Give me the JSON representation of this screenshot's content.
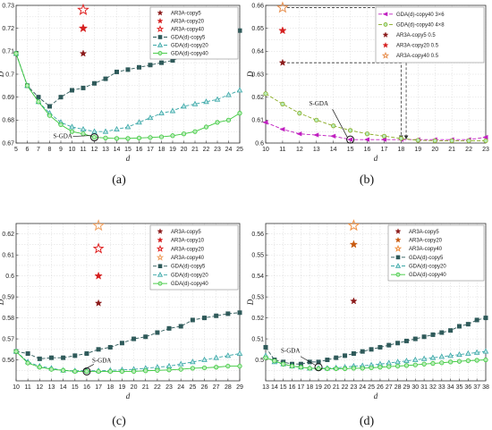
{
  "chart_data": [
    {
      "type": "line",
      "panel_label": "(a)",
      "xlabel": "d",
      "ylabel": "D",
      "xlim": [
        5,
        25
      ],
      "ylim": [
        0.67,
        0.73
      ],
      "xticks": [
        5,
        6,
        7,
        8,
        9,
        10,
        11,
        12,
        13,
        14,
        15,
        16,
        17,
        18,
        19,
        20,
        21,
        22,
        23,
        24,
        25
      ],
      "yticks": [
        0.67,
        0.68,
        0.69,
        0.7,
        0.71,
        0.72,
        0.73
      ],
      "ytick_labels": [
        "0.67",
        "0.68",
        "0.69",
        "0.7",
        "0.71",
        "0.72",
        "0.73"
      ],
      "grid": true,
      "legend_position": "top-right",
      "annotation": {
        "text": "S-GDA",
        "x": 12,
        "y": 0.6725
      },
      "series": [
        {
          "name": "AR3A-copy5",
          "style": "star",
          "color": "#8b1a1a",
          "size": 6,
          "points": [
            [
              11,
              0.709
            ]
          ]
        },
        {
          "name": "AR3A-copy20",
          "style": "star",
          "color": "#d62020",
          "size": 8,
          "points": [
            [
              11,
              0.72
            ]
          ]
        },
        {
          "name": "AR3A-copy40",
          "style": "star-open",
          "color": "#e02020",
          "size": 10,
          "points": [
            [
              11,
              0.728
            ]
          ]
        },
        {
          "name": "GDA(d)-copy5",
          "style": "square",
          "color": "#2f5a5a",
          "dash": "4,2",
          "x": [
            5,
            6,
            7,
            8,
            9,
            10,
            11,
            12,
            13,
            14,
            15,
            16,
            17,
            18,
            19,
            20,
            21,
            22,
            23,
            24,
            25
          ],
          "values": [
            0.709,
            0.695,
            0.69,
            0.686,
            0.69,
            0.693,
            0.694,
            0.696,
            0.698,
            0.701,
            0.702,
            0.703,
            0.704,
            0.705,
            0.706,
            0.708,
            0.709,
            0.71,
            0.712,
            0.714,
            0.719
          ]
        },
        {
          "name": "GDA(d)-copy20",
          "style": "triangle",
          "color": "#3aa6a6",
          "dash": "4,2",
          "x": [
            5,
            6,
            7,
            8,
            9,
            10,
            11,
            12,
            13,
            14,
            15,
            16,
            17,
            18,
            19,
            20,
            21,
            22,
            23,
            24,
            25
          ],
          "values": [
            0.709,
            0.695,
            0.688,
            0.683,
            0.679,
            0.677,
            0.676,
            0.675,
            0.675,
            0.676,
            0.677,
            0.679,
            0.681,
            0.683,
            0.684,
            0.686,
            0.687,
            0.688,
            0.689,
            0.691,
            0.693
          ]
        },
        {
          "name": "GDA(d)-copy40",
          "style": "circle",
          "color": "#3cc83c",
          "dash": "",
          "x": [
            5,
            6,
            7,
            8,
            9,
            10,
            11,
            12,
            13,
            14,
            15,
            16,
            17,
            18,
            19,
            20,
            21,
            22,
            23,
            24,
            25
          ],
          "values": [
            0.709,
            0.695,
            0.688,
            0.682,
            0.678,
            0.675,
            0.674,
            0.6725,
            0.6722,
            0.672,
            0.672,
            0.6722,
            0.6724,
            0.6727,
            0.6732,
            0.674,
            0.675,
            0.677,
            0.679,
            0.68,
            0.683
          ]
        }
      ]
    },
    {
      "type": "line",
      "panel_label": "(b)",
      "xlabel": "d",
      "ylabel": "D",
      "xlim": [
        10,
        23
      ],
      "ylim": [
        0.6,
        0.66
      ],
      "xticks": [
        10,
        11,
        12,
        13,
        14,
        15,
        16,
        17,
        18,
        19,
        20,
        21,
        22,
        23
      ],
      "yticks": [
        0.6,
        0.61,
        0.62,
        0.63,
        0.64,
        0.65,
        0.66
      ],
      "ytick_labels": [
        "0.6",
        "0.61",
        "0.62",
        "0.63",
        "0.64",
        "0.65",
        "0.66"
      ],
      "grid": true,
      "legend_position": "top-right",
      "annotation": {
        "text": "S-GDA",
        "x": 15,
        "y": 0.6015
      },
      "series": [
        {
          "name": "GDA(d)-copy40 3×6",
          "style": "triangle-left",
          "color": "#c020c0",
          "dash": "4,2",
          "x": [
            10,
            11,
            12,
            13,
            14,
            15,
            16,
            17,
            18,
            19,
            20,
            21,
            22,
            23
          ],
          "values": [
            0.609,
            0.606,
            0.604,
            0.6035,
            0.603,
            0.6015,
            0.6015,
            0.6015,
            0.6015,
            0.6015,
            0.6015,
            0.6015,
            0.6015,
            0.6025
          ]
        },
        {
          "name": "GDA(d)-copy40 4×8",
          "style": "circle",
          "color": "#88aa22",
          "dash": "4,2",
          "x": [
            10,
            11,
            12,
            13,
            14,
            15,
            16,
            17,
            18,
            19,
            20,
            21,
            22,
            23
          ],
          "values": [
            0.6215,
            0.617,
            0.613,
            0.61,
            0.6075,
            0.6055,
            0.604,
            0.603,
            0.602,
            0.6012,
            0.601,
            0.601,
            0.601,
            0.601
          ]
        },
        {
          "name": "AR3A-copy5 0.5",
          "style": "star",
          "color": "#8b1a1a",
          "size": 6,
          "points": [
            [
              11,
              0.635
            ]
          ]
        },
        {
          "name": "AR3A-copy20 0.5",
          "style": "star",
          "color": "#d62020",
          "size": 7,
          "points": [
            [
              11,
              0.649
            ]
          ]
        },
        {
          "name": "AR3A-copy40 0.5",
          "style": "star-open",
          "color": "#e89050",
          "size": 10,
          "points": [
            [
              11,
              0.659
            ]
          ]
        }
      ]
    },
    {
      "type": "line",
      "panel_label": "(c)",
      "xlabel": "d",
      "ylabel": "D",
      "xlim": [
        10,
        29
      ],
      "ylim": [
        0.55,
        0.625
      ],
      "xticks": [
        10,
        11,
        12,
        13,
        14,
        15,
        16,
        17,
        18,
        19,
        20,
        21,
        22,
        23,
        24,
        25,
        26,
        27,
        28,
        29
      ],
      "yticks": [
        0.56,
        0.57,
        0.58,
        0.59,
        0.6,
        0.61,
        0.62
      ],
      "ytick_labels": [
        "0.56",
        "0.57",
        "0.58",
        "0.59",
        "0.6",
        "0.61",
        "0.62"
      ],
      "grid": true,
      "legend_position": "top-right",
      "annotation": {
        "text": "S-GDA",
        "x": 16,
        "y": 0.5545
      },
      "series": [
        {
          "name": "AR3A-copy5",
          "style": "star",
          "color": "#8b1a1a",
          "size": 6,
          "points": [
            [
              17,
              0.587
            ]
          ]
        },
        {
          "name": "AR3A-copy10",
          "style": "star",
          "color": "#d62020",
          "size": 7,
          "points": [
            [
              17,
              0.6
            ]
          ]
        },
        {
          "name": "AR3A-copy20",
          "style": "star-open",
          "color": "#e02020",
          "size": 9,
          "points": [
            [
              17,
              0.613
            ]
          ]
        },
        {
          "name": "AR3A-copy40",
          "style": "star-open",
          "color": "#f0a060",
          "size": 10,
          "points": [
            [
              17,
              0.624
            ]
          ]
        },
        {
          "name": "GDA(d)-copy5",
          "style": "square",
          "color": "#2f5a5a",
          "dash": "4,2",
          "x": [
            10,
            11,
            12,
            13,
            14,
            15,
            16,
            17,
            18,
            19,
            20,
            21,
            22,
            23,
            24,
            25,
            26,
            27,
            28,
            29
          ],
          "values": [
            0.564,
            0.563,
            0.5605,
            0.561,
            0.561,
            0.562,
            0.563,
            0.565,
            0.566,
            0.568,
            0.57,
            0.571,
            0.573,
            0.575,
            0.576,
            0.579,
            0.58,
            0.581,
            0.582,
            0.5825
          ]
        },
        {
          "name": "GDA(d)-copy20",
          "style": "triangle",
          "color": "#3aa6a6",
          "dash": "4,2",
          "x": [
            10,
            11,
            12,
            13,
            14,
            15,
            16,
            17,
            18,
            19,
            20,
            21,
            22,
            23,
            24,
            25,
            26,
            27,
            28,
            29
          ],
          "values": [
            0.564,
            0.559,
            0.557,
            0.556,
            0.555,
            0.5548,
            0.5548,
            0.5548,
            0.555,
            0.5552,
            0.5555,
            0.556,
            0.5565,
            0.557,
            0.558,
            0.559,
            0.56,
            0.561,
            0.562,
            0.563
          ]
        },
        {
          "name": "GDA(d)-copy40",
          "style": "circle",
          "color": "#3cc83c",
          "dash": "",
          "x": [
            10,
            11,
            12,
            13,
            14,
            15,
            16,
            17,
            18,
            19,
            20,
            21,
            22,
            23,
            24,
            25,
            26,
            27,
            28,
            29
          ],
          "values": [
            0.564,
            0.5585,
            0.5565,
            0.5555,
            0.555,
            0.5545,
            0.5545,
            0.5545,
            0.5545,
            0.5545,
            0.5545,
            0.5548,
            0.555,
            0.5552,
            0.5555,
            0.556,
            0.5562,
            0.5565,
            0.557,
            0.557
          ]
        }
      ]
    },
    {
      "type": "line",
      "panel_label": "(d)",
      "xlabel": "d",
      "ylabel": "D",
      "xlim": [
        13,
        38
      ],
      "ylim": [
        0.49,
        0.565
      ],
      "xticks": [
        13,
        14,
        15,
        16,
        17,
        18,
        19,
        20,
        21,
        22,
        23,
        24,
        25,
        26,
        27,
        28,
        29,
        30,
        31,
        32,
        33,
        34,
        35,
        36,
        37,
        38
      ],
      "yticks": [
        0.5,
        0.51,
        0.52,
        0.53,
        0.54,
        0.55,
        0.56
      ],
      "ytick_labels": [
        "0.5",
        "0.51",
        "0.52",
        "0.53",
        "0.54",
        "0.55",
        "0.56"
      ],
      "grid": true,
      "legend_position": "top-right",
      "annotation": {
        "text": "S-GDA",
        "x": 19,
        "y": 0.4965
      },
      "series": [
        {
          "name": "AR3A-copy5",
          "style": "star",
          "color": "#8b1a1a",
          "size": 6,
          "points": [
            [
              23,
              0.528
            ]
          ]
        },
        {
          "name": "AR3A-copy20",
          "style": "star",
          "color": "#c85a10",
          "size": 7,
          "points": [
            [
              23,
              0.555
            ]
          ]
        },
        {
          "name": "AR3A-copy40",
          "style": "star-open",
          "color": "#f09040",
          "size": 10,
          "points": [
            [
              23,
              0.564
            ]
          ]
        },
        {
          "name": "GDA(d)-copy5",
          "style": "square",
          "color": "#2f5a5a",
          "dash": "4,2",
          "x": [
            13,
            14,
            15,
            16,
            17,
            18,
            19,
            20,
            21,
            22,
            23,
            24,
            25,
            26,
            27,
            28,
            29,
            30,
            31,
            32,
            33,
            34,
            35,
            36,
            37,
            38
          ],
          "values": [
            0.506,
            0.5,
            0.499,
            0.498,
            0.498,
            0.499,
            0.499,
            0.5,
            0.501,
            0.502,
            0.503,
            0.504,
            0.505,
            0.506,
            0.507,
            0.508,
            0.509,
            0.51,
            0.511,
            0.512,
            0.513,
            0.514,
            0.516,
            0.517,
            0.519,
            0.52
          ]
        },
        {
          "name": "GDA(d)-copy20",
          "style": "triangle",
          "color": "#3aa6a6",
          "dash": "4,2",
          "x": [
            13,
            14,
            15,
            16,
            17,
            18,
            19,
            20,
            21,
            22,
            23,
            24,
            25,
            26,
            27,
            28,
            29,
            30,
            31,
            32,
            33,
            34,
            35,
            36,
            37,
            38
          ],
          "values": [
            0.502,
            0.499,
            0.498,
            0.497,
            0.4965,
            0.496,
            0.496,
            0.496,
            0.4962,
            0.4965,
            0.497,
            0.4972,
            0.4975,
            0.498,
            0.4985,
            0.499,
            0.4995,
            0.5,
            0.5005,
            0.501,
            0.5015,
            0.502,
            0.5025,
            0.503,
            0.5035,
            0.504
          ]
        },
        {
          "name": "GDA(d)-copy40",
          "style": "circle",
          "color": "#3cc83c",
          "dash": "",
          "x": [
            13,
            14,
            15,
            16,
            17,
            18,
            19,
            20,
            21,
            22,
            23,
            24,
            25,
            26,
            27,
            28,
            29,
            30,
            31,
            32,
            33,
            34,
            35,
            36,
            37,
            38
          ],
          "values": [
            0.501,
            0.4995,
            0.498,
            0.497,
            0.4965,
            0.496,
            0.4958,
            0.4958,
            0.4958,
            0.4958,
            0.496,
            0.496,
            0.4962,
            0.4965,
            0.4968,
            0.497,
            0.4973,
            0.4976,
            0.498,
            0.4983,
            0.4986,
            0.499,
            0.4993,
            0.4996,
            0.4998,
            0.5
          ]
        }
      ]
    }
  ]
}
